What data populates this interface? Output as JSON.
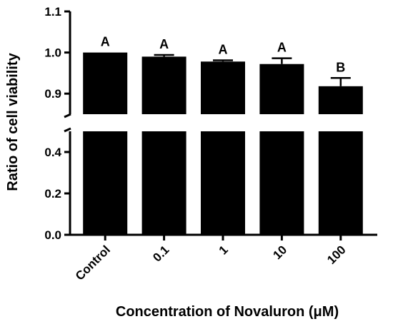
{
  "chart_data": {
    "type": "bar",
    "title": "",
    "xlabel": "Concentration of Novaluron (μM)",
    "ylabel": "Ratio of cell viability",
    "categories": [
      "Control",
      "0.1",
      "1",
      "10",
      "100"
    ],
    "values": [
      1.0,
      0.99,
      0.978,
      0.972,
      0.918
    ],
    "error_upper": [
      0.0,
      0.004,
      0.003,
      0.014,
      0.02
    ],
    "significance_labels": [
      "A",
      "A",
      "A",
      "A",
      "B"
    ],
    "axis_break": true,
    "lower_segment": {
      "ylim": [
        0.0,
        0.5
      ],
      "ticks": [
        0.0,
        0.2,
        0.4
      ],
      "tick_labels": [
        "0.0",
        "0.2",
        "0.4"
      ]
    },
    "upper_segment": {
      "ylim": [
        0.85,
        1.1
      ],
      "ticks": [
        0.9,
        1.0,
        1.1
      ],
      "tick_labels": [
        "0.9",
        "1.0",
        "1.1"
      ]
    },
    "bar_color": "#000000",
    "grid": false,
    "legend": "none"
  }
}
